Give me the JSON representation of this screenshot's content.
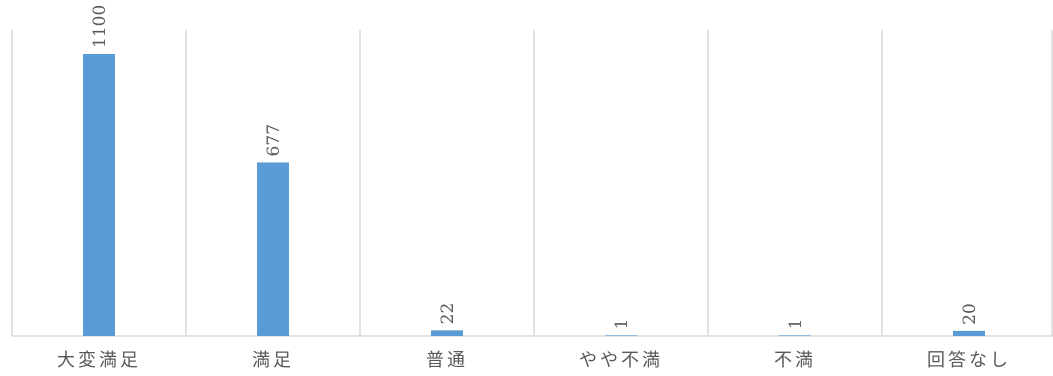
{
  "chart_data": {
    "type": "bar",
    "categories": [
      "大変満足",
      "満足",
      "普通",
      "やや不満",
      "不満",
      "回答なし"
    ],
    "values": [
      1100,
      677,
      22,
      1,
      1,
      20
    ],
    "data_labels": [
      "1100",
      "677",
      "22",
      "1",
      "1",
      "20"
    ],
    "ylim": [
      0,
      1100
    ],
    "grid": true,
    "legend": "none",
    "colors": {
      "bar": "#5b9bd5",
      "grid": "#d9d9d9",
      "text": "#595959"
    }
  }
}
